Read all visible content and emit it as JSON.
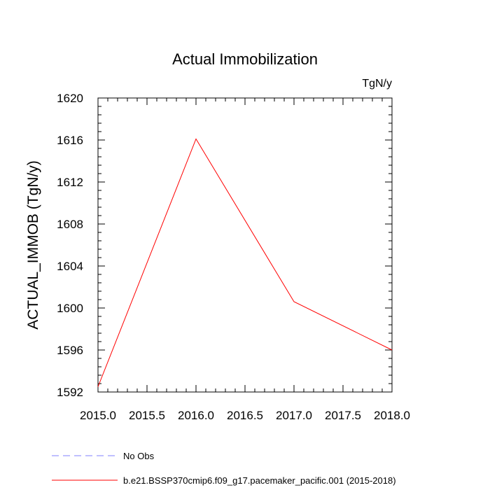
{
  "chart_data": {
    "type": "line",
    "title": "Actual Immobilization",
    "units_label": "TgN/y",
    "xlabel": "",
    "ylabel": "ACTUAL_IMMOB  (TgN/y)",
    "xlim": [
      2015.0,
      2018.0
    ],
    "ylim": [
      1592,
      1620
    ],
    "xticks": [
      "2015.0",
      "2015.5",
      "2016.0",
      "2016.5",
      "2017.0",
      "2017.5",
      "2018.0"
    ],
    "yticks": [
      "1592",
      "1596",
      "1600",
      "1604",
      "1608",
      "1612",
      "1616",
      "1620"
    ],
    "series": [
      {
        "name": "b.e21.BSSP370cmip6.f09_g17.pacemaker_pacific.001 (2015-2018)",
        "color": "#ff0000",
        "dash": "solid",
        "x": [
          2015.0,
          2016.0,
          2017.0,
          2018.0
        ],
        "y": [
          1592.5,
          1616.1,
          1600.6,
          1596.0
        ]
      }
    ],
    "legend": [
      {
        "label": "No Obs",
        "color": "#8080ff",
        "dash": "dashed"
      },
      {
        "label": "b.e21.BSSP370cmip6.f09_g17.pacemaker_pacific.001 (2015-2018)",
        "color": "#ff0000",
        "dash": "solid"
      }
    ]
  }
}
